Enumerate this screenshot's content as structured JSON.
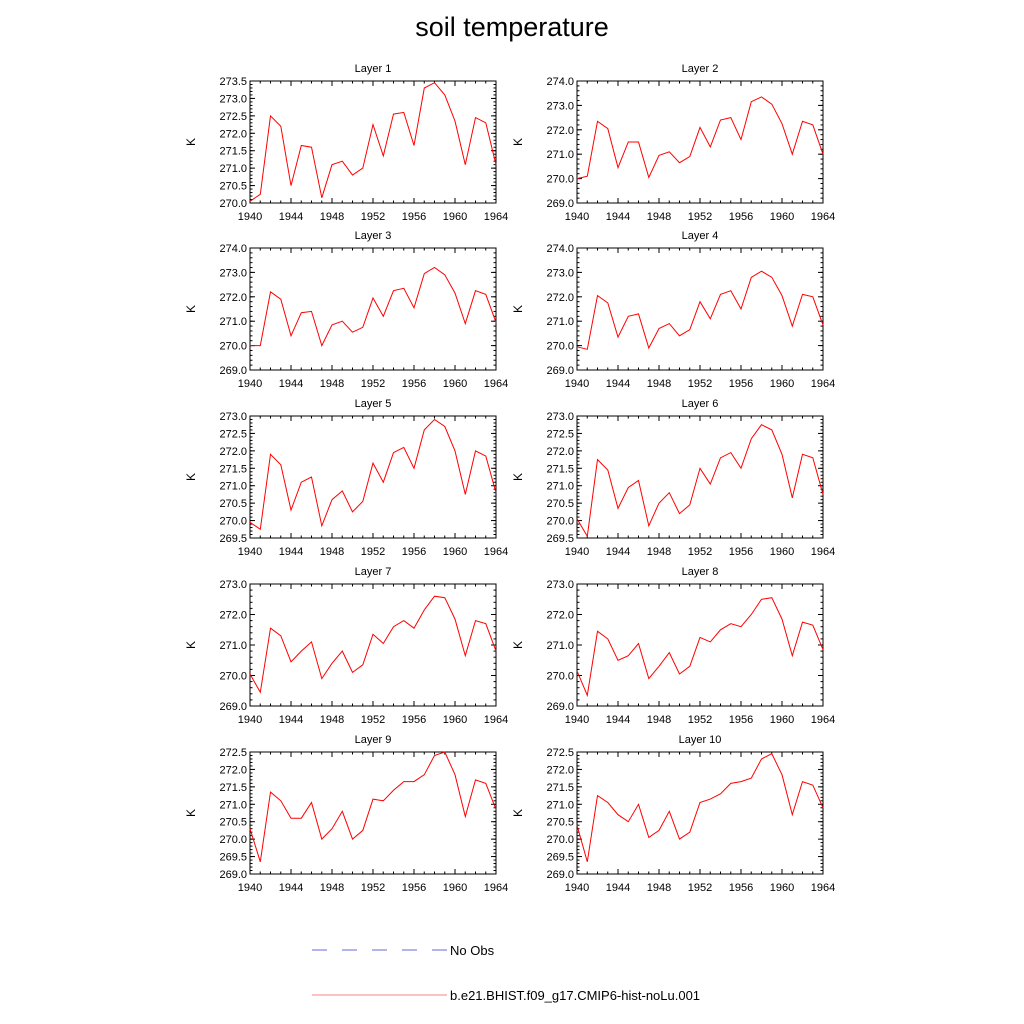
{
  "figure": {
    "title": "soil temperature"
  },
  "legend": {
    "entries": [
      {
        "label": "No Obs",
        "color": "#6a6ad8",
        "style": "dashed"
      },
      {
        "label": "b.e21.BHIST.f09_g17.CMIP6-hist-noLu.001",
        "color": "#ff0000",
        "style": "solid"
      }
    ]
  },
  "chart_data": [
    {
      "type": "line",
      "title": "Layer 1",
      "xlabel": "",
      "ylabel": "K",
      "xlim": [
        1940,
        1964
      ],
      "ylim": [
        270.0,
        273.5
      ],
      "yticks": [
        "270.0",
        "270.5",
        "271.0",
        "271.5",
        "272.0",
        "272.5",
        "273.0",
        "273.5"
      ],
      "xticks": [
        "1940",
        "1944",
        "1948",
        "1952",
        "1956",
        "1960",
        "1964"
      ],
      "series": [
        {
          "color": "#ff0000",
          "x": [
            1940,
            1941,
            1942,
            1943,
            1944,
            1945,
            1946,
            1947,
            1948,
            1949,
            1950,
            1951,
            1952,
            1953,
            1954,
            1955,
            1956,
            1957,
            1958,
            1959,
            1960,
            1961,
            1962,
            1963,
            1964
          ],
          "values": [
            270.05,
            270.25,
            272.5,
            272.2,
            270.5,
            271.65,
            271.6,
            270.15,
            271.1,
            271.2,
            270.8,
            271.0,
            272.25,
            271.35,
            272.55,
            272.6,
            271.65,
            273.3,
            273.45,
            273.1,
            272.35,
            271.1,
            272.45,
            272.3,
            271.1
          ]
        }
      ]
    },
    {
      "type": "line",
      "title": "Layer 2",
      "xlabel": "",
      "ylabel": "K",
      "xlim": [
        1940,
        1964
      ],
      "ylim": [
        269.0,
        274.0
      ],
      "yticks": [
        "269.0",
        "270.0",
        "271.0",
        "272.0",
        "273.0",
        "274.0"
      ],
      "xticks": [
        "1940",
        "1944",
        "1948",
        "1952",
        "1956",
        "1960",
        "1964"
      ],
      "series": [
        {
          "color": "#ff0000",
          "x": [
            1940,
            1941,
            1942,
            1943,
            1944,
            1945,
            1946,
            1947,
            1948,
            1949,
            1950,
            1951,
            1952,
            1953,
            1954,
            1955,
            1956,
            1957,
            1958,
            1959,
            1960,
            1961,
            1962,
            1963,
            1964
          ],
          "values": [
            270.0,
            270.1,
            272.35,
            272.05,
            270.45,
            271.5,
            271.5,
            270.05,
            270.95,
            271.1,
            270.65,
            270.9,
            272.1,
            271.3,
            272.4,
            272.5,
            271.6,
            273.15,
            273.35,
            273.05,
            272.25,
            271.0,
            272.35,
            272.2,
            271.0
          ]
        }
      ]
    },
    {
      "type": "line",
      "title": "Layer 3",
      "xlabel": "",
      "ylabel": "K",
      "xlim": [
        1940,
        1964
      ],
      "ylim": [
        269.0,
        274.0
      ],
      "yticks": [
        "269.0",
        "270.0",
        "271.0",
        "272.0",
        "273.0",
        "274.0"
      ],
      "xticks": [
        "1940",
        "1944",
        "1948",
        "1952",
        "1956",
        "1960",
        "1964"
      ],
      "series": [
        {
          "color": "#ff0000",
          "x": [
            1940,
            1941,
            1942,
            1943,
            1944,
            1945,
            1946,
            1947,
            1948,
            1949,
            1950,
            1951,
            1952,
            1953,
            1954,
            1955,
            1956,
            1957,
            1958,
            1959,
            1960,
            1961,
            1962,
            1963,
            1964
          ],
          "values": [
            270.0,
            270.0,
            272.2,
            271.9,
            270.4,
            271.35,
            271.4,
            270.0,
            270.85,
            271.0,
            270.55,
            270.75,
            271.95,
            271.2,
            272.25,
            272.35,
            271.55,
            272.95,
            273.2,
            272.9,
            272.15,
            270.9,
            272.25,
            272.1,
            270.95
          ]
        }
      ]
    },
    {
      "type": "line",
      "title": "Layer 4",
      "xlabel": "",
      "ylabel": "K",
      "xlim": [
        1940,
        1964
      ],
      "ylim": [
        269.0,
        274.0
      ],
      "yticks": [
        "269.0",
        "270.0",
        "271.0",
        "272.0",
        "273.0",
        "274.0"
      ],
      "xticks": [
        "1940",
        "1944",
        "1948",
        "1952",
        "1956",
        "1960",
        "1964"
      ],
      "series": [
        {
          "color": "#ff0000",
          "x": [
            1940,
            1941,
            1942,
            1943,
            1944,
            1945,
            1946,
            1947,
            1948,
            1949,
            1950,
            1951,
            1952,
            1953,
            1954,
            1955,
            1956,
            1957,
            1958,
            1959,
            1960,
            1961,
            1962,
            1963,
            1964
          ],
          "values": [
            269.95,
            269.85,
            272.05,
            271.75,
            270.35,
            271.2,
            271.3,
            269.9,
            270.7,
            270.9,
            270.4,
            270.65,
            271.8,
            271.1,
            272.1,
            272.25,
            271.5,
            272.8,
            273.05,
            272.8,
            272.05,
            270.8,
            272.1,
            272.0,
            270.85
          ]
        }
      ]
    },
    {
      "type": "line",
      "title": "Layer 5",
      "xlabel": "",
      "ylabel": "K",
      "xlim": [
        1940,
        1964
      ],
      "ylim": [
        269.5,
        273.0
      ],
      "yticks": [
        "269.5",
        "270.0",
        "270.5",
        "271.0",
        "271.5",
        "272.0",
        "272.5",
        "273.0"
      ],
      "xticks": [
        "1940",
        "1944",
        "1948",
        "1952",
        "1956",
        "1960",
        "1964"
      ],
      "series": [
        {
          "color": "#ff0000",
          "x": [
            1940,
            1941,
            1942,
            1943,
            1944,
            1945,
            1946,
            1947,
            1948,
            1949,
            1950,
            1951,
            1952,
            1953,
            1954,
            1955,
            1956,
            1957,
            1958,
            1959,
            1960,
            1961,
            1962,
            1963,
            1964
          ],
          "values": [
            269.95,
            269.75,
            271.9,
            271.6,
            270.3,
            271.1,
            271.25,
            269.85,
            270.6,
            270.85,
            270.25,
            270.55,
            271.65,
            271.1,
            271.95,
            272.1,
            271.5,
            272.6,
            272.9,
            272.7,
            272.0,
            270.75,
            272.0,
            271.85,
            270.8
          ]
        }
      ]
    },
    {
      "type": "line",
      "title": "Layer 6",
      "xlabel": "",
      "ylabel": "K",
      "xlim": [
        1940,
        1964
      ],
      "ylim": [
        269.5,
        273.0
      ],
      "yticks": [
        "269.5",
        "270.0",
        "270.5",
        "271.0",
        "271.5",
        "272.0",
        "272.5",
        "273.0"
      ],
      "xticks": [
        "1940",
        "1944",
        "1948",
        "1952",
        "1956",
        "1960",
        "1964"
      ],
      "series": [
        {
          "color": "#ff0000",
          "x": [
            1940,
            1941,
            1942,
            1943,
            1944,
            1945,
            1946,
            1947,
            1948,
            1949,
            1950,
            1951,
            1952,
            1953,
            1954,
            1955,
            1956,
            1957,
            1958,
            1959,
            1960,
            1961,
            1962,
            1963,
            1964
          ],
          "values": [
            270.05,
            269.55,
            271.75,
            271.45,
            270.35,
            270.95,
            271.15,
            269.85,
            270.5,
            270.8,
            270.2,
            270.45,
            271.5,
            271.05,
            271.8,
            271.95,
            271.5,
            272.35,
            272.75,
            272.6,
            271.9,
            270.65,
            271.9,
            271.8,
            270.75
          ]
        }
      ]
    },
    {
      "type": "line",
      "title": "Layer 7",
      "xlabel": "",
      "ylabel": "K",
      "xlim": [
        1940,
        1964
      ],
      "ylim": [
        269.0,
        273.0
      ],
      "yticks": [
        "269.0",
        "270.0",
        "271.0",
        "272.0",
        "273.0"
      ],
      "xticks": [
        "1940",
        "1944",
        "1948",
        "1952",
        "1956",
        "1960",
        "1964"
      ],
      "series": [
        {
          "color": "#ff0000",
          "x": [
            1940,
            1941,
            1942,
            1943,
            1944,
            1945,
            1946,
            1947,
            1948,
            1949,
            1950,
            1951,
            1952,
            1953,
            1954,
            1955,
            1956,
            1957,
            1958,
            1959,
            1960,
            1961,
            1962,
            1963,
            1964
          ],
          "values": [
            270.05,
            269.45,
            271.55,
            271.3,
            270.45,
            270.8,
            271.1,
            269.9,
            270.4,
            270.8,
            270.1,
            270.35,
            271.35,
            271.05,
            271.6,
            271.8,
            271.55,
            272.15,
            272.6,
            272.55,
            271.85,
            270.65,
            271.8,
            271.7,
            270.8
          ]
        }
      ]
    },
    {
      "type": "line",
      "title": "Layer 8",
      "xlabel": "",
      "ylabel": "K",
      "xlim": [
        1940,
        1964
      ],
      "ylim": [
        269.0,
        273.0
      ],
      "yticks": [
        "269.0",
        "270.0",
        "271.0",
        "272.0",
        "273.0"
      ],
      "xticks": [
        "1940",
        "1944",
        "1948",
        "1952",
        "1956",
        "1960",
        "1964"
      ],
      "series": [
        {
          "color": "#ff0000",
          "x": [
            1940,
            1941,
            1942,
            1943,
            1944,
            1945,
            1946,
            1947,
            1948,
            1949,
            1950,
            1951,
            1952,
            1953,
            1954,
            1955,
            1956,
            1957,
            1958,
            1959,
            1960,
            1961,
            1962,
            1963,
            1964
          ],
          "values": [
            270.15,
            269.35,
            271.45,
            271.2,
            270.5,
            270.65,
            271.05,
            269.9,
            270.3,
            270.75,
            270.05,
            270.3,
            271.25,
            271.1,
            271.5,
            271.7,
            271.6,
            272.0,
            272.5,
            272.55,
            271.85,
            270.65,
            271.75,
            271.65,
            270.85
          ]
        }
      ]
    },
    {
      "type": "line",
      "title": "Layer 9",
      "xlabel": "",
      "ylabel": "K",
      "xlim": [
        1940,
        1964
      ],
      "ylim": [
        269.0,
        272.5
      ],
      "yticks": [
        "269.0",
        "269.5",
        "270.0",
        "270.5",
        "271.0",
        "271.5",
        "272.0",
        "272.5"
      ],
      "xticks": [
        "1940",
        "1944",
        "1948",
        "1952",
        "1956",
        "1960",
        "1964"
      ],
      "series": [
        {
          "color": "#ff0000",
          "x": [
            1940,
            1941,
            1942,
            1943,
            1944,
            1945,
            1946,
            1947,
            1948,
            1949,
            1950,
            1951,
            1952,
            1953,
            1954,
            1955,
            1956,
            1957,
            1958,
            1959,
            1960,
            1961,
            1962,
            1963,
            1964
          ],
          "values": [
            270.3,
            269.35,
            271.35,
            271.1,
            270.6,
            270.6,
            271.05,
            270.0,
            270.3,
            270.8,
            270.0,
            270.25,
            271.15,
            271.1,
            271.4,
            271.65,
            271.65,
            271.85,
            272.4,
            272.5,
            271.85,
            270.65,
            271.7,
            271.6,
            270.85
          ]
        }
      ]
    },
    {
      "type": "line",
      "title": "Layer 10",
      "xlabel": "",
      "ylabel": "K",
      "xlim": [
        1940,
        1964
      ],
      "ylim": [
        269.0,
        272.5
      ],
      "yticks": [
        "269.0",
        "269.5",
        "270.0",
        "270.5",
        "271.0",
        "271.5",
        "272.0",
        "272.5"
      ],
      "xticks": [
        "1940",
        "1944",
        "1948",
        "1952",
        "1956",
        "1960",
        "1964"
      ],
      "series": [
        {
          "color": "#ff0000",
          "x": [
            1940,
            1941,
            1942,
            1943,
            1944,
            1945,
            1946,
            1947,
            1948,
            1949,
            1950,
            1951,
            1952,
            1953,
            1954,
            1955,
            1956,
            1957,
            1958,
            1959,
            1960,
            1961,
            1962,
            1963,
            1964
          ],
          "values": [
            270.4,
            269.35,
            271.25,
            271.05,
            270.7,
            270.5,
            271.0,
            270.05,
            270.25,
            270.8,
            270.0,
            270.2,
            271.05,
            271.15,
            271.3,
            271.6,
            271.65,
            271.75,
            272.3,
            272.45,
            271.85,
            270.7,
            271.65,
            271.55,
            270.9
          ]
        }
      ]
    }
  ]
}
